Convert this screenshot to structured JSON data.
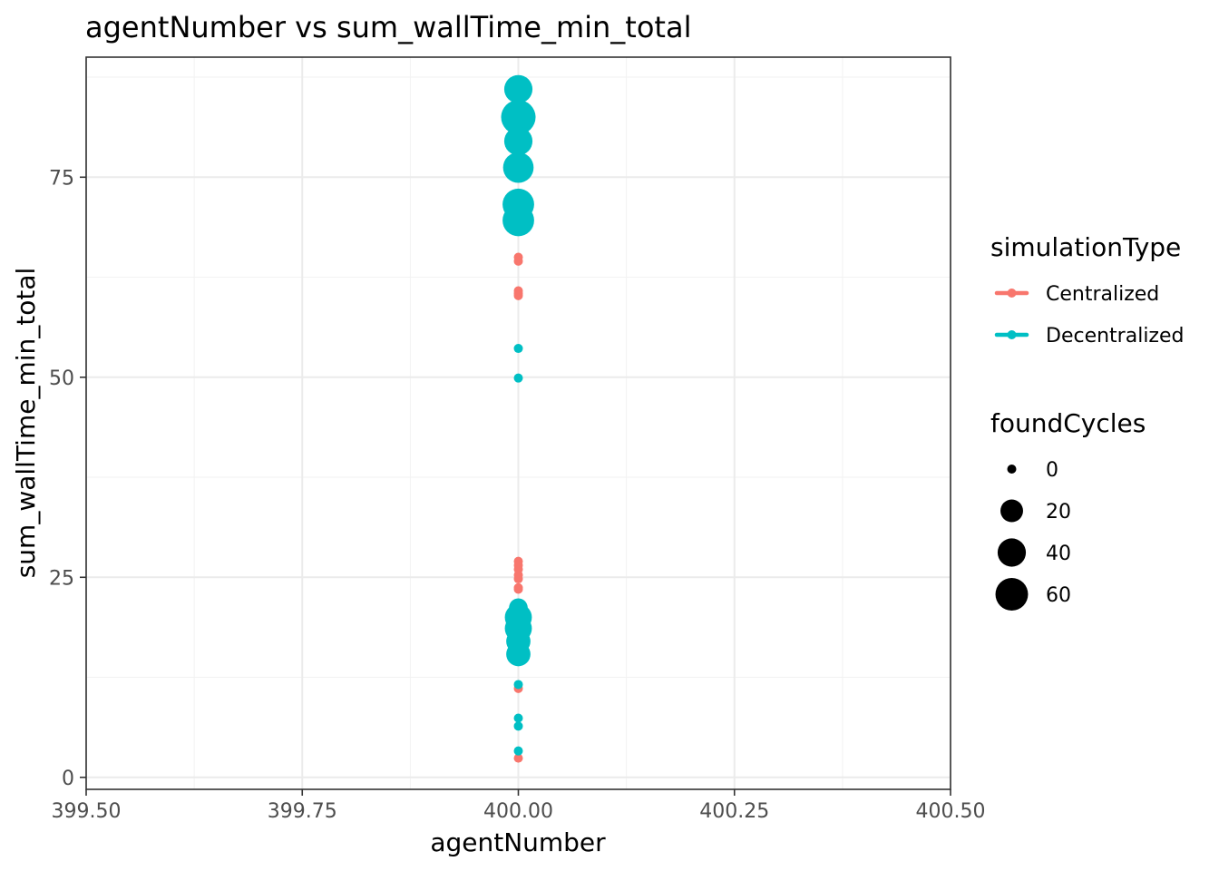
{
  "chart_data": {
    "type": "scatter",
    "title": "agentNumber  vs  sum_wallTime_min_total",
    "xlabel": "agentNumber",
    "ylabel": "sum_wallTime_min_total",
    "xlim": [
      399.5,
      400.5
    ],
    "ylim": [
      -1.5,
      90.0
    ],
    "x_ticks": [
      399.5,
      399.75,
      400.0,
      400.25,
      400.5
    ],
    "x_tick_labels": [
      "399.50",
      "399.75",
      "400.00",
      "400.25",
      "400.50"
    ],
    "y_ticks": [
      0,
      25,
      50,
      75
    ],
    "y_tick_labels": [
      "0",
      "25",
      "50",
      "75"
    ],
    "grid": true,
    "legend_position": "right",
    "color_legend": {
      "title": "simulationType",
      "entries": [
        {
          "label": "Centralized",
          "color": "#F8766D"
        },
        {
          "label": "Decentralized",
          "color": "#00BFC4"
        }
      ]
    },
    "size_legend": {
      "title": "foundCycles",
      "entries": [
        {
          "label": "0",
          "value": 0
        },
        {
          "label": "20",
          "value": 20
        },
        {
          "label": "40",
          "value": 40
        },
        {
          "label": "60",
          "value": 60
        }
      ]
    },
    "series": [
      {
        "name": "Centralized",
        "color": "#F8766D",
        "points": [
          {
            "x": 400.0,
            "y": 65.0,
            "foundCycles": 0
          },
          {
            "x": 400.0,
            "y": 64.5,
            "foundCycles": 0
          },
          {
            "x": 400.0,
            "y": 60.8,
            "foundCycles": 0
          },
          {
            "x": 400.0,
            "y": 60.5,
            "foundCycles": 0
          },
          {
            "x": 400.0,
            "y": 60.2,
            "foundCycles": 0
          },
          {
            "x": 400.0,
            "y": 27.0,
            "foundCycles": 0
          },
          {
            "x": 400.0,
            "y": 26.5,
            "foundCycles": 0
          },
          {
            "x": 400.0,
            "y": 26.0,
            "foundCycles": 0
          },
          {
            "x": 400.0,
            "y": 25.3,
            "foundCycles": 0
          },
          {
            "x": 400.0,
            "y": 24.8,
            "foundCycles": 0
          },
          {
            "x": 400.0,
            "y": 23.7,
            "foundCycles": 0
          },
          {
            "x": 400.0,
            "y": 23.5,
            "foundCycles": 0
          },
          {
            "x": 400.0,
            "y": 21.0,
            "foundCycles": 0
          },
          {
            "x": 400.0,
            "y": 11.1,
            "foundCycles": 0
          },
          {
            "x": 400.0,
            "y": 2.4,
            "foundCycles": 0
          }
        ]
      },
      {
        "name": "Decentralized",
        "color": "#00BFC4",
        "points": [
          {
            "x": 400.0,
            "y": 86.0,
            "foundCycles": 40
          },
          {
            "x": 400.0,
            "y": 82.5,
            "foundCycles": 70
          },
          {
            "x": 400.0,
            "y": 79.5,
            "foundCycles": 40
          },
          {
            "x": 400.0,
            "y": 76.2,
            "foundCycles": 50
          },
          {
            "x": 400.0,
            "y": 71.6,
            "foundCycles": 55
          },
          {
            "x": 400.0,
            "y": 69.6,
            "foundCycles": 55
          },
          {
            "x": 400.0,
            "y": 53.6,
            "foundCycles": 0
          },
          {
            "x": 400.0,
            "y": 49.9,
            "foundCycles": 0
          },
          {
            "x": 400.0,
            "y": 21.2,
            "foundCycles": 10
          },
          {
            "x": 400.0,
            "y": 20.0,
            "foundCycles": 35
          },
          {
            "x": 400.0,
            "y": 18.6,
            "foundCycles": 35
          },
          {
            "x": 400.0,
            "y": 17.0,
            "foundCycles": 25
          },
          {
            "x": 400.0,
            "y": 15.4,
            "foundCycles": 25
          },
          {
            "x": 400.0,
            "y": 11.6,
            "foundCycles": 0
          },
          {
            "x": 400.0,
            "y": 7.4,
            "foundCycles": 0
          },
          {
            "x": 400.0,
            "y": 6.4,
            "foundCycles": 0
          },
          {
            "x": 400.0,
            "y": 3.3,
            "foundCycles": 0
          }
        ]
      }
    ]
  }
}
